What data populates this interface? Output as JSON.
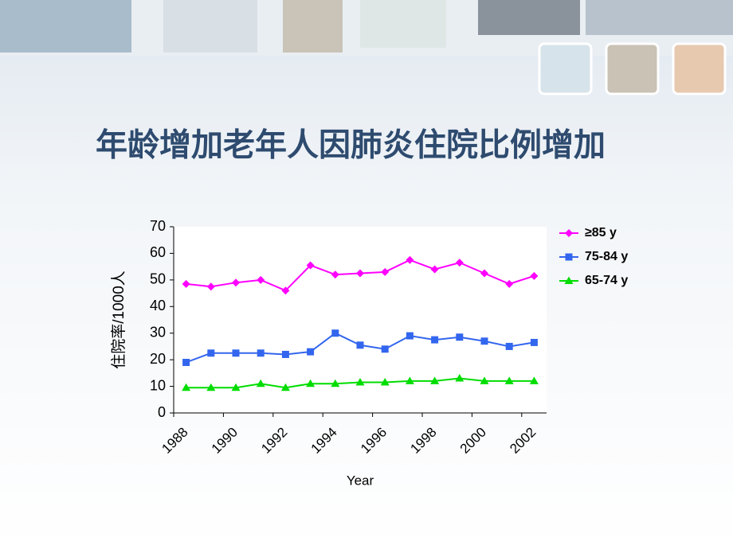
{
  "chart_data": {
    "type": "line",
    "title": "年龄增加老年人因肺炎住院比例增加",
    "x_label": "Year",
    "y_label": "住院率/1000人",
    "categories": [
      "1988",
      null,
      "1990",
      null,
      "1992",
      null,
      "1994",
      null,
      "1996",
      null,
      "1998",
      null,
      "2000",
      null,
      "2002"
    ],
    "series": [
      {
        "name": "≥85 y",
        "color": "#ff00ff",
        "marker": "diamond",
        "values": [
          48.5,
          47.5,
          49,
          50,
          46,
          55.5,
          52,
          52.5,
          53,
          57.5,
          54,
          56.5,
          52.5,
          48.5,
          51.5
        ]
      },
      {
        "name": "75-84 y",
        "color": "#3366ee",
        "marker": "square",
        "values": [
          19,
          22.5,
          22.5,
          22.5,
          22,
          23,
          30,
          25.5,
          24,
          29,
          27.5,
          28.5,
          27,
          25,
          26.5
        ]
      },
      {
        "name": "65-74 y",
        "color": "#00dd00",
        "marker": "triangle",
        "values": [
          9.5,
          9.5,
          9.5,
          11,
          9.5,
          11,
          11,
          11.5,
          11.5,
          12,
          12,
          13,
          12,
          12,
          12
        ]
      }
    ],
    "ylim": [
      0,
      70
    ],
    "yticks": [
      0,
      10,
      20,
      30,
      40,
      50,
      60,
      70
    ],
    "legend": "right"
  }
}
